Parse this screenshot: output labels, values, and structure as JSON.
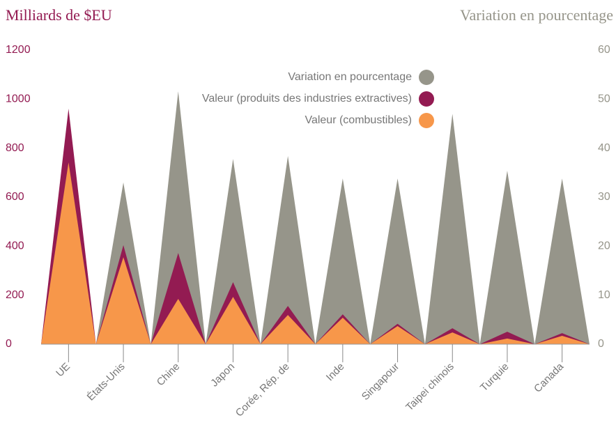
{
  "chart_data": {
    "type": "triangle-area",
    "y_title": "Milliards de $EU",
    "y2_title": "Variation en pourcentage",
    "categories": [
      "UE",
      "États-Unis",
      "Chine",
      "Japon",
      "Corée, Rép. de",
      "Inde",
      "Singapour",
      "Taipei chinois",
      "Turquie",
      "Canada"
    ],
    "series": [
      {
        "name": "Variation en pourcentage",
        "color": "#96958a",
        "axis": "y2",
        "values": [
          31,
          33,
          51.6,
          37.8,
          38.4,
          33.8,
          33.8,
          47,
          35.4,
          33.8
        ]
      },
      {
        "name": "Valeur (produits des industries extractives)",
        "color": "#931b52",
        "values": [
          961,
          404,
          372,
          253,
          156,
          122,
          83,
          65,
          51,
          45
        ]
      },
      {
        "name": "Valeur (combustibles)",
        "color": "#f7974a",
        "values": [
          742,
          355,
          185,
          193,
          119,
          108,
          74,
          48,
          23,
          34
        ]
      }
    ],
    "ylim": [
      0,
      1200
    ],
    "yticks": [
      0,
      200,
      400,
      600,
      800,
      1000,
      1200
    ],
    "y2lim": [
      0,
      60
    ],
    "y2ticks": [
      0,
      10,
      20,
      30,
      40,
      50,
      60
    ]
  }
}
